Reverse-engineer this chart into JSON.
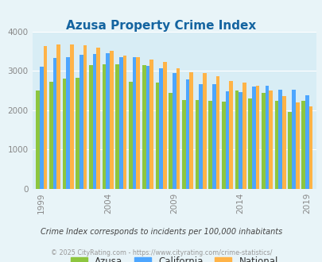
{
  "title": "Azusa Property Crime Index",
  "title_color": "#1464a0",
  "years": [
    1999,
    2000,
    2001,
    2002,
    2003,
    2004,
    2005,
    2006,
    2007,
    2008,
    2009,
    2010,
    2011,
    2012,
    2013,
    2014,
    2015,
    2016,
    2017,
    2018,
    2019
  ],
  "azusa": [
    2500,
    2720,
    2800,
    2820,
    3150,
    3170,
    3160,
    2720,
    3150,
    2700,
    2440,
    2260,
    2260,
    2230,
    2210,
    2500,
    2290,
    2440,
    2240,
    1950,
    2230
  ],
  "california": [
    3110,
    3320,
    3350,
    3400,
    3430,
    3450,
    3340,
    3340,
    3130,
    3060,
    2940,
    2780,
    2650,
    2650,
    2470,
    2460,
    2600,
    2610,
    2520,
    2510,
    2380
  ],
  "national": [
    3620,
    3660,
    3660,
    3650,
    3590,
    3510,
    3380,
    3340,
    3290,
    3230,
    3070,
    2970,
    2940,
    2860,
    2740,
    2700,
    2610,
    2490,
    2360,
    2200,
    2100
  ],
  "azusa_color": "#8dc63f",
  "california_color": "#4da6ff",
  "national_color": "#ffb347",
  "bg_color": "#e8f4f8",
  "plot_bg_color": "#d8edf5",
  "ylim": [
    0,
    4000
  ],
  "yticks": [
    0,
    1000,
    2000,
    3000,
    4000
  ],
  "xlabel_ticks": [
    1999,
    2004,
    2009,
    2014,
    2019
  ],
  "subtitle": "Crime Index corresponds to incidents per 100,000 inhabitants",
  "subtitle_color": "#444444",
  "copyright": "© 2025 CityRating.com - https://www.cityrating.com/crime-statistics/",
  "copyright_color": "#999999",
  "legend_labels": [
    "Azusa",
    "California",
    "National"
  ],
  "bar_width": 0.28
}
